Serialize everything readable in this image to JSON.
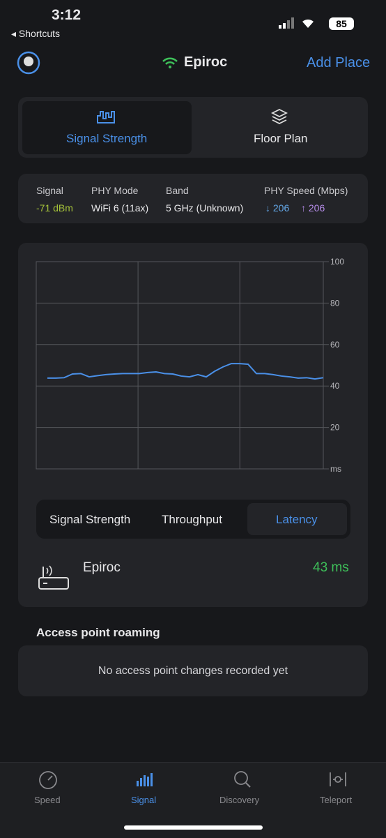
{
  "status_bar": {
    "time": "3:12",
    "back": "Shortcuts",
    "battery": "85"
  },
  "header": {
    "network": "Epiroc",
    "action": "Add Place"
  },
  "tabs": [
    "Signal Strength",
    "Floor Plan"
  ],
  "info": {
    "labels": [
      "Signal",
      "PHY Mode",
      "Band",
      "PHY Speed (Mbps)"
    ],
    "signal": "-71 dBm",
    "phy_mode": "WiFi 6 (11ax)",
    "band": "5 GHz (Unknown)",
    "speed_down": "↓ 206",
    "speed_up": "↑ 206"
  },
  "chart_data": {
    "type": "line",
    "color": "#4a90e8",
    "grid": true,
    "values": [
      43.8,
      43.8,
      44,
      45.8,
      46,
      44.4,
      45,
      45.5,
      45.8,
      46,
      46,
      46,
      46.5,
      46.8,
      46,
      45.8,
      44.8,
      44.4,
      45.5,
      44.4,
      47.1,
      49.2,
      50.8,
      50.8,
      50.5,
      46,
      46,
      45.5,
      44.8,
      44.4,
      43.8,
      44,
      43.4,
      44
    ],
    "ylim": [
      0,
      100
    ],
    "yticks": [
      {
        "value": 0,
        "label": "ms"
      },
      20,
      40,
      60,
      80,
      100
    ]
  },
  "segment": [
    "Signal Strength",
    "Throughput",
    "Latency"
  ],
  "device": {
    "name": "Epiroc",
    "latency": "43 ms"
  },
  "roaming": {
    "title": "Access point roaming",
    "empty": "No access point changes recorded yet"
  },
  "tabbar": [
    "Speed",
    "Signal",
    "Discovery",
    "Teleport"
  ]
}
